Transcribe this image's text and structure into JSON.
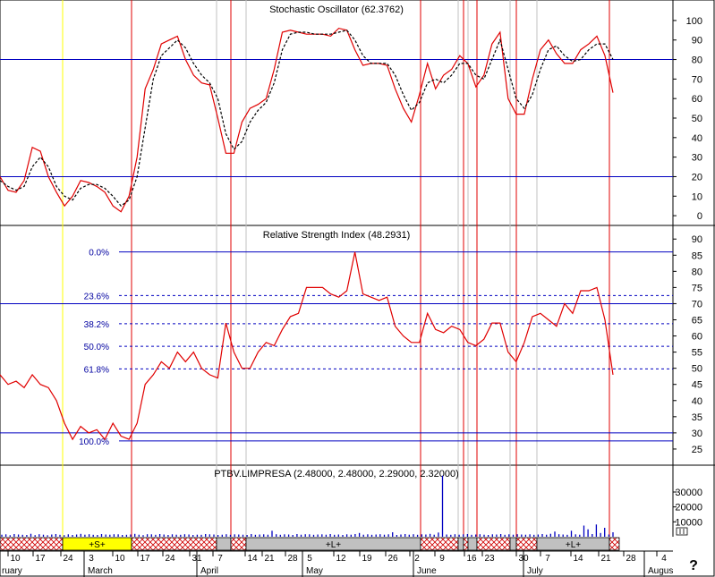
{
  "chart_data": [
    {
      "type": "line",
      "title": "Stochastic Oscillator (62.3762)",
      "y_ticks": [
        100,
        90,
        80,
        70,
        60,
        50,
        40,
        30,
        20,
        10,
        0
      ],
      "ylim": [
        -5,
        105
      ],
      "reference_lines": [
        80,
        20
      ],
      "series": [
        {
          "color": "#e00000",
          "style": "solid",
          "values": [
            20,
            13,
            12,
            18,
            35,
            33,
            20,
            12,
            5,
            10,
            18,
            17,
            15,
            12,
            5,
            2,
            10,
            30,
            65,
            75,
            88,
            90,
            92,
            80,
            72,
            68,
            67,
            50,
            32,
            32,
            48,
            55,
            57,
            60,
            75,
            94,
            95,
            94,
            93,
            93,
            93,
            92,
            96,
            95,
            85,
            77,
            78,
            78,
            77,
            65,
            55,
            48,
            62,
            78,
            65,
            72,
            75,
            82,
            78,
            66,
            72,
            88,
            94,
            60,
            52,
            52,
            70,
            85,
            90,
            83,
            78,
            78,
            85,
            88,
            92,
            82,
            63
          ]
        },
        {
          "color": "#000000",
          "style": "dashed",
          "values": [
            18,
            15,
            13,
            15,
            25,
            30,
            25,
            15,
            10,
            8,
            14,
            16,
            16,
            14,
            10,
            5,
            8,
            20,
            45,
            70,
            82,
            86,
            90,
            86,
            78,
            72,
            68,
            60,
            42,
            34,
            38,
            48,
            54,
            58,
            68,
            85,
            93,
            94,
            94,
            93,
            93,
            93,
            94,
            95,
            90,
            82,
            78,
            78,
            78,
            72,
            62,
            54,
            58,
            68,
            70,
            68,
            72,
            78,
            78,
            72,
            70,
            80,
            90,
            75,
            60,
            55,
            62,
            75,
            85,
            87,
            82,
            79,
            80,
            85,
            88,
            88,
            80
          ]
        }
      ]
    },
    {
      "type": "line",
      "title": "Relative Strength Index (48.2931)",
      "y_ticks": [
        90,
        85,
        80,
        75,
        70,
        65,
        60,
        55,
        50,
        45,
        40,
        35,
        30,
        25
      ],
      "ylim": [
        20,
        92
      ],
      "reference_lines": [
        70,
        30
      ],
      "fib_levels": [
        {
          "label": "0.0%",
          "value": 86
        },
        {
          "label": "23.6%",
          "value": 72.5
        },
        {
          "label": "38.2%",
          "value": 63.8
        },
        {
          "label": "50.0%",
          "value": 56.8
        },
        {
          "label": "61.8%",
          "value": 49.8
        },
        {
          "label": "100.0%",
          "value": 27.5
        }
      ],
      "series": [
        {
          "color": "#e00000",
          "style": "solid",
          "values": [
            48,
            45,
            46,
            44,
            48,
            45,
            44,
            40,
            33,
            28,
            32,
            30,
            31,
            28,
            33,
            29,
            28,
            33,
            45,
            48,
            52,
            50,
            55,
            52,
            55,
            50,
            48,
            47,
            64,
            55,
            50,
            50,
            55,
            58,
            57,
            62,
            66,
            67,
            75,
            75,
            75,
            73,
            72,
            74,
            86,
            73,
            72,
            71,
            72,
            63,
            60,
            58,
            58,
            67,
            62,
            61,
            63,
            62,
            58,
            57,
            59,
            64,
            64,
            55,
            52,
            58,
            66,
            67,
            65,
            63,
            70,
            67,
            74,
            74,
            75,
            65,
            48
          ]
        }
      ]
    },
    {
      "type": "bar",
      "title": "PTBV.LIMPRESA (2.48000, 2.48000, 2.29000, 2.32000)",
      "y_ticks": [
        30000,
        20000,
        10000
      ],
      "ylim": [
        0,
        45000
      ],
      "series": [
        {
          "color": "#0000c0",
          "values": [
            1400,
            1600,
            1000,
            1800,
            1500,
            1300,
            1200,
            2000,
            1100,
            1700,
            1400,
            1000,
            1500,
            1800,
            1300,
            1100,
            1600,
            1200,
            1500,
            1900,
            1400,
            1700,
            1300,
            1200,
            1800,
            1500,
            1400,
            1700,
            1600,
            1200,
            1300,
            1500,
            1900,
            1400,
            1100,
            1700,
            1600,
            1300,
            1800,
            1500,
            1200,
            1600,
            1400,
            1300,
            1700,
            1500,
            1200,
            1400,
            1300,
            1800,
            1600,
            1500,
            1200,
            1400,
            1700,
            1300,
            1600,
            1500,
            1400,
            1200,
            1800,
            1300,
            1500,
            1600,
            1400,
            4000,
            1700,
            1300,
            1600,
            1500,
            1200,
            1800,
            1400,
            1700,
            1600,
            1300,
            1500,
            1600,
            1400,
            1800,
            1300,
            1500,
            1200,
            1600,
            1400,
            1800,
            2500,
            1400,
            1600,
            1300,
            1500,
            1700,
            1400,
            1600,
            3000,
            1200,
            1500,
            1800,
            1400,
            1700,
            1300,
            1600,
            1500,
            1900,
            1400,
            2800,
            41000,
            1500,
            1300,
            1700,
            1400,
            1600,
            1800,
            1300,
            1500,
            1700,
            1400,
            1200,
            1600,
            1500,
            1800,
            1300,
            1600,
            1400,
            1700,
            1500,
            1400,
            1600,
            1300,
            1500,
            1800,
            1400,
            2000,
            3500,
            1700,
            1500,
            1300,
            4000,
            1600,
            1400,
            7500,
            5000,
            1800,
            8200,
            2500,
            6000,
            1500,
            3000
          ]
        }
      ]
    }
  ],
  "signal_bar": [
    {
      "label": "",
      "fill": "hatch"
    },
    {
      "label": "+S+",
      "fill": "#ffff00"
    },
    {
      "label": "",
      "fill": "hatch"
    },
    {
      "label": "",
      "fill": "#c0c0c0"
    },
    {
      "label": "",
      "fill": "hatch"
    },
    {
      "label": "+L+",
      "fill": "#c0c0c0"
    },
    {
      "label": "",
      "fill": "hatch"
    },
    {
      "label": "",
      "fill": "#c0c0c0"
    },
    {
      "label": "",
      "fill": "hatch"
    },
    {
      "label": "",
      "fill": "#c0c0c0"
    },
    {
      "label": "",
      "fill": "hatch"
    },
    {
      "label": "",
      "fill": "#c0c0c0"
    },
    {
      "label": "",
      "fill": "hatch"
    },
    {
      "label": "",
      "fill": "#c0c0c0"
    },
    {
      "label": "+L+",
      "fill": "#c0c0c0"
    },
    {
      "label": "",
      "fill": "hatch"
    }
  ],
  "date_axis": {
    "days": [
      "10",
      "17",
      "24",
      "3",
      "10",
      "17",
      "24",
      "31",
      "7",
      "14",
      "21",
      "28",
      "5",
      "12",
      "19",
      "26",
      "2",
      "9",
      "16",
      "23",
      "30",
      "7",
      "14",
      "21",
      "28",
      "4"
    ],
    "months": [
      "ruary",
      "March",
      "April",
      "May",
      "June",
      "July",
      "Augus"
    ]
  },
  "help_glyph": "?",
  "colors": {
    "price_line": "#e00000",
    "signal_line": "#000000",
    "reference": "#0000c0",
    "fib_text": "#0000a0",
    "vertical_line": "#e00000",
    "grey_vertical": "#c0c0c0",
    "yellow_vertical": "#ffff00"
  }
}
